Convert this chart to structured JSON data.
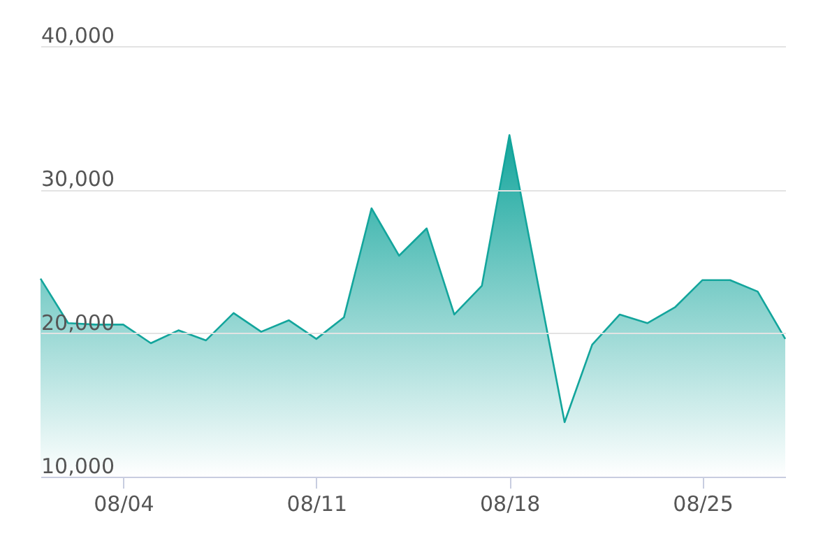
{
  "chart_data": {
    "type": "area",
    "x": [
      "--08-01",
      "--08-02",
      "--08-03",
      "--08-04",
      "--08-05",
      "--08-06",
      "--08-07",
      "--08-08",
      "--08-09",
      "--08-10",
      "--08-11",
      "--08-12",
      "--08-13",
      "--08-14",
      "--08-15",
      "--08-16",
      "--08-17",
      "--08-18",
      "--08-19",
      "--08-20",
      "--08-21",
      "--08-22",
      "--08-23",
      "--08-24",
      "--08-25",
      "--08-26",
      "--08-27",
      "--08-28"
    ],
    "series": [
      {
        "color": "#13a59c",
        "values": [
          23800,
          20700,
          20600,
          20600,
          19300,
          20200,
          19500,
          21400,
          20100,
          20900,
          19600,
          21100,
          28700,
          25400,
          27300,
          21300,
          23300,
          33800,
          23800,
          13800,
          19200,
          21300,
          20700,
          21800,
          23700,
          23700,
          22900,
          19600
        ]
      }
    ],
    "xlim": [
      "--08-01",
      "--08-28"
    ],
    "xticks": [
      {
        "value": "--08-04",
        "label": "08/04"
      },
      {
        "value": "--08-11",
        "label": "08/11"
      },
      {
        "value": "--08-18",
        "label": "08/18"
      },
      {
        "value": "--08-25",
        "label": "08/25"
      }
    ],
    "ylim": [
      10000,
      40000
    ],
    "yticks": [
      {
        "value": 10000,
        "label": "10,000"
      },
      {
        "value": 20000,
        "label": "20,000"
      },
      {
        "value": 30000,
        "label": "30,000"
      },
      {
        "value": 40000,
        "label": "40,000"
      }
    ],
    "grid": "y"
  }
}
